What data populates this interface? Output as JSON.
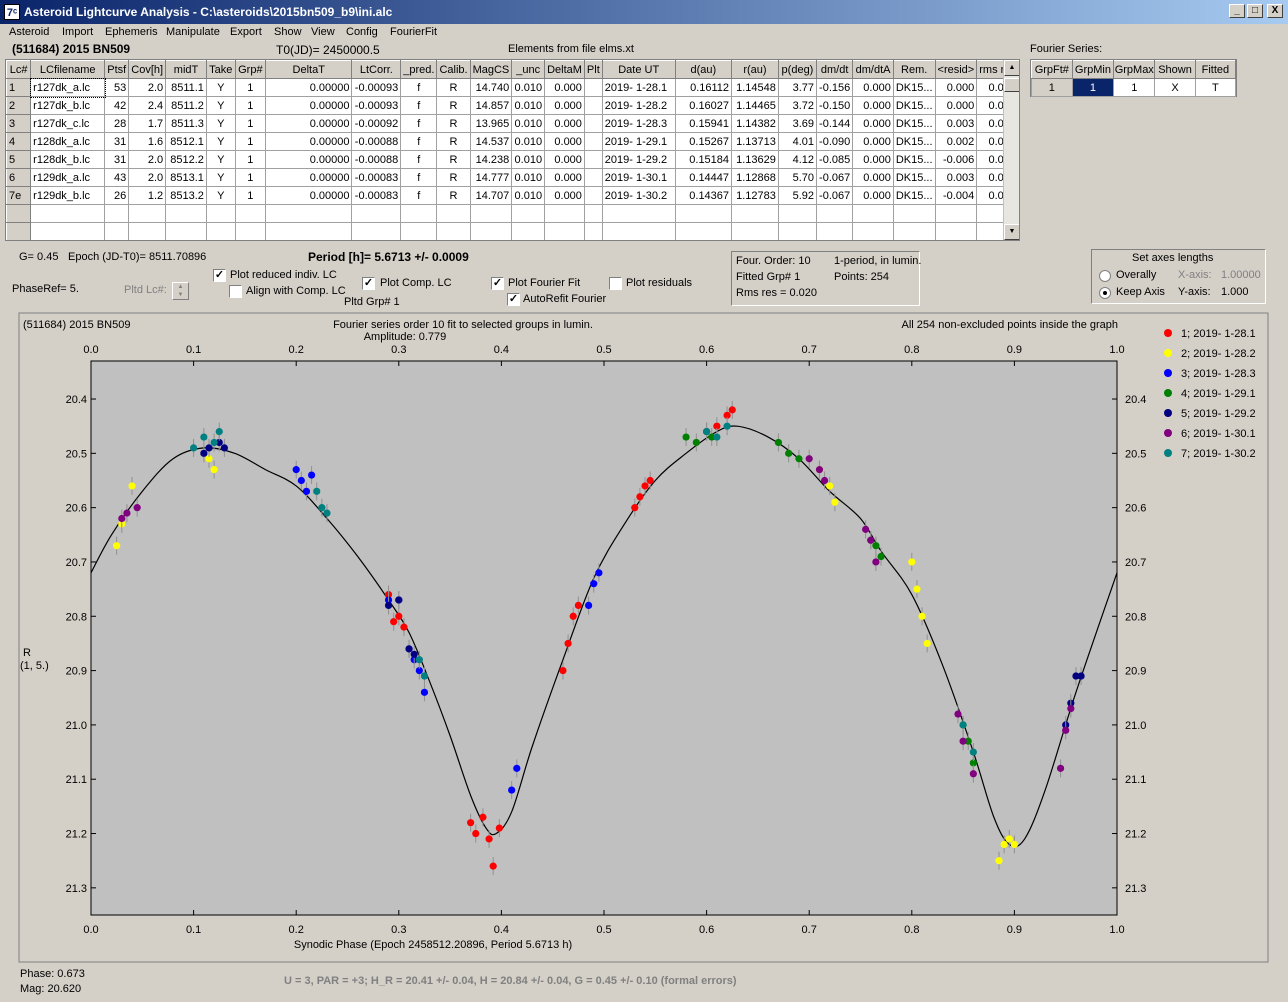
{
  "window": {
    "title": "Asteroid Lightcurve Analysis - C:\\asteroids\\2015bn509_b9\\ini.alc",
    "icon_glyph": "7ᶜ",
    "minimize": "_",
    "maximize": "□",
    "close": "X"
  },
  "menu": [
    "Asteroid",
    "Import",
    "Ephemeris",
    "Manipulate",
    "Export",
    "Show",
    "View",
    "Config",
    "FourierFit"
  ],
  "header": {
    "object": "(511684) 2015 BN509",
    "t0": "T0(JD)= 2450000.5",
    "elements": "Elements from file elms.xt",
    "fourier_label": "Fourier Series:"
  },
  "grid": {
    "columns": [
      "Lc#",
      "LCfilename",
      "Ptsf",
      "Cov[h]",
      "midT",
      "Take",
      "Grp#",
      "DeltaT",
      "LtCorr.",
      "_pred.",
      "Calib.",
      "MagCS",
      "_unc",
      "DeltaM",
      "Plt",
      "Date UT",
      "d(au)",
      "r(au)",
      "p(deg)",
      "dm/dt",
      "dm/dtA",
      "Rem.",
      "<resid>",
      "rms res"
    ],
    "rows": [
      [
        "1",
        "r127dk_a.lc",
        "53",
        "2.0",
        "8511.1",
        "Y",
        "1",
        "0.00000",
        "-0.00093",
        "f",
        "R",
        "14.740",
        "0.010",
        "0.000",
        "",
        "2019- 1-28.1",
        "0.16112",
        "1.14548",
        "3.77",
        "-0.156",
        "0.000",
        "DK15...",
        "0.000",
        "0.020"
      ],
      [
        "2",
        "r127dk_b.lc",
        "42",
        "2.4",
        "8511.2",
        "Y",
        "1",
        "0.00000",
        "-0.00093",
        "f",
        "R",
        "14.857",
        "0.010",
        "0.000",
        "",
        "2019- 1-28.2",
        "0.16027",
        "1.14465",
        "3.72",
        "-0.150",
        "0.000",
        "DK15...",
        "0.000",
        "0.025"
      ],
      [
        "3",
        "r127dk_c.lc",
        "28",
        "1.7",
        "8511.3",
        "Y",
        "1",
        "0.00000",
        "-0.00092",
        "f",
        "R",
        "13.965",
        "0.010",
        "0.000",
        "",
        "2019- 1-28.3",
        "0.15941",
        "1.14382",
        "3.69",
        "-0.144",
        "0.000",
        "DK15...",
        "0.003",
        "0.017"
      ],
      [
        "4",
        "r128dk_a.lc",
        "31",
        "1.6",
        "8512.1",
        "Y",
        "1",
        "0.00000",
        "-0.00088",
        "f",
        "R",
        "14.537",
        "0.010",
        "0.000",
        "",
        "2019- 1-29.1",
        "0.15267",
        "1.13713",
        "4.01",
        "-0.090",
        "0.000",
        "DK15...",
        "0.002",
        "0.018"
      ],
      [
        "5",
        "r128dk_b.lc",
        "31",
        "2.0",
        "8512.2",
        "Y",
        "1",
        "0.00000",
        "-0.00088",
        "f",
        "R",
        "14.238",
        "0.010",
        "0.000",
        "",
        "2019- 1-29.2",
        "0.15184",
        "1.13629",
        "4.12",
        "-0.085",
        "0.000",
        "DK15...",
        "-0.006",
        "0.013"
      ],
      [
        "6",
        "r129dk_a.lc",
        "43",
        "2.0",
        "8513.1",
        "Y",
        "1",
        "0.00000",
        "-0.00083",
        "f",
        "R",
        "14.777",
        "0.010",
        "0.000",
        "",
        "2019- 1-30.1",
        "0.14447",
        "1.12868",
        "5.70",
        "-0.067",
        "0.000",
        "DK15...",
        "0.003",
        "0.020"
      ],
      [
        "7e",
        "r129dk_b.lc",
        "26",
        "1.2",
        "8513.2",
        "Y",
        "1",
        "0.00000",
        "-0.00083",
        "f",
        "R",
        "14.707",
        "0.010",
        "0.000",
        "",
        "2019- 1-30.2",
        "0.14367",
        "1.12783",
        "5.92",
        "-0.067",
        "0.000",
        "DK15...",
        "-0.004",
        "0.019"
      ]
    ]
  },
  "fourier_grid": {
    "columns": [
      "GrpFt#",
      "GrpMin",
      "GrpMax",
      "Shown",
      "Fitted"
    ],
    "rows": [
      [
        "1",
        "1",
        "1",
        "X",
        "T"
      ]
    ]
  },
  "controls": {
    "g": "G= 0.45",
    "epoch": "Epoch (JD-T0)= 8511.70896",
    "period": "Period [h]= 5.6713 +/- 0.0009",
    "phaseref": "PhaseRef= 5.",
    "pltd_lc": "Pltd Lc#:",
    "plot_reduced": "Plot reduced indiv. LC",
    "align_comp": "Align with Comp. LC",
    "plot_comp": "Plot Comp. LC",
    "pltd_grp": "Pltd Grp#  1",
    "plot_fourier": "Plot Fourier Fit",
    "autorefit": "AutoRefit Fourier",
    "plot_residuals": "Plot residuals",
    "check": "✓",
    "spin_up": "▲",
    "spin_down": "▼",
    "info": {
      "order": "Four. Order: 10",
      "period_mode": "1-period, in lumin.",
      "fitted": "Fitted Grp# 1",
      "points": "Points: 254",
      "rms": "Rms res     = 0.020"
    },
    "axes": {
      "title": "Set axes lengths",
      "overally": "Overally",
      "keep_axis": "Keep Axis",
      "x_axis_label": "X-axis:",
      "x_axis_value": "1.00000",
      "y_axis_label": "Y-axis:",
      "y_axis_value": "1.000"
    }
  },
  "footer": {
    "phase": "Phase:  0.673",
    "mag": "Mag:    20.620",
    "result": "U = 3, PAR = +3; H_R = 20.41 +/- 0.04, H = 20.84 +/- 0.04, G = 0.45 +/- 0.10 (formal errors)"
  },
  "colors": {
    "plot_bg": "#c0c0c0",
    "curve": "#000000"
  },
  "chart_data": {
    "type": "scatter",
    "title": "(511684) 2015 BN509",
    "subtitle": "Fourier series order 10 fit to selected groups in lumin.",
    "amplitude": "Amplitude: 0.779",
    "note": "All 254 non-excluded points inside the graph",
    "xlabel": "Synodic Phase (Epoch 2458512.20896, Period 5.6713 h)",
    "ylabel": "R",
    "ylabel2": "(1, 5.)",
    "xlim": [
      0.0,
      1.0
    ],
    "ylim": [
      20.33,
      21.35
    ],
    "y_inverted": true,
    "x_ticks": [
      "0.0",
      "0.1",
      "0.2",
      "0.3",
      "0.4",
      "0.5",
      "0.6",
      "0.7",
      "0.8",
      "0.9",
      "1.0"
    ],
    "y_ticks": [
      "20.4",
      "20.5",
      "20.6",
      "20.7",
      "20.8",
      "20.9",
      "21.0",
      "21.1",
      "21.2",
      "21.3"
    ],
    "fit_curve": [
      [
        0.0,
        20.72
      ],
      [
        0.02,
        20.65
      ],
      [
        0.05,
        20.57
      ],
      [
        0.08,
        20.51
      ],
      [
        0.11,
        20.49
      ],
      [
        0.14,
        20.5
      ],
      [
        0.17,
        20.53
      ],
      [
        0.2,
        20.56
      ],
      [
        0.23,
        20.62
      ],
      [
        0.26,
        20.69
      ],
      [
        0.29,
        20.77
      ],
      [
        0.31,
        20.83
      ],
      [
        0.33,
        20.92
      ],
      [
        0.35,
        21.02
      ],
      [
        0.37,
        21.13
      ],
      [
        0.385,
        21.19
      ],
      [
        0.395,
        21.2
      ],
      [
        0.41,
        21.16
      ],
      [
        0.43,
        21.04
      ],
      [
        0.46,
        20.88
      ],
      [
        0.49,
        20.73
      ],
      [
        0.52,
        20.63
      ],
      [
        0.55,
        20.55
      ],
      [
        0.58,
        20.5
      ],
      [
        0.61,
        20.46
      ],
      [
        0.63,
        20.45
      ],
      [
        0.66,
        20.47
      ],
      [
        0.69,
        20.51
      ],
      [
        0.72,
        20.57
      ],
      [
        0.75,
        20.62
      ],
      [
        0.77,
        20.68
      ],
      [
        0.8,
        20.76
      ],
      [
        0.83,
        20.89
      ],
      [
        0.86,
        21.05
      ],
      [
        0.88,
        21.17
      ],
      [
        0.895,
        21.22
      ],
      [
        0.91,
        21.21
      ],
      [
        0.93,
        21.12
      ],
      [
        0.96,
        20.94
      ],
      [
        1.0,
        20.72
      ]
    ],
    "series": [
      {
        "name": "1; 2019- 1-28.1",
        "color": "#ff0000",
        "points": [
          [
            0.37,
            21.18
          ],
          [
            0.375,
            21.2
          ],
          [
            0.382,
            21.17
          ],
          [
            0.388,
            21.21
          ],
          [
            0.392,
            21.26
          ],
          [
            0.398,
            21.19
          ],
          [
            0.46,
            20.9
          ],
          [
            0.465,
            20.85
          ],
          [
            0.47,
            20.8
          ],
          [
            0.475,
            20.78
          ],
          [
            0.53,
            20.6
          ],
          [
            0.535,
            20.58
          ],
          [
            0.54,
            20.56
          ],
          [
            0.545,
            20.55
          ],
          [
            0.6,
            20.46
          ],
          [
            0.61,
            20.45
          ],
          [
            0.62,
            20.43
          ],
          [
            0.625,
            20.42
          ],
          [
            0.29,
            20.76
          ],
          [
            0.295,
            20.81
          ],
          [
            0.3,
            20.8
          ],
          [
            0.305,
            20.82
          ]
        ]
      },
      {
        "name": "2; 2019- 1-28.2",
        "color": "#ffff00",
        "points": [
          [
            0.025,
            20.67
          ],
          [
            0.03,
            20.63
          ],
          [
            0.04,
            20.56
          ],
          [
            0.115,
            20.51
          ],
          [
            0.12,
            20.53
          ],
          [
            0.71,
            20.53
          ],
          [
            0.72,
            20.56
          ],
          [
            0.725,
            20.59
          ],
          [
            0.8,
            20.7
          ],
          [
            0.805,
            20.75
          ],
          [
            0.81,
            20.8
          ],
          [
            0.815,
            20.85
          ],
          [
            0.885,
            21.25
          ],
          [
            0.89,
            21.22
          ],
          [
            0.895,
            21.21
          ],
          [
            0.9,
            21.22
          ]
        ]
      },
      {
        "name": "3; 2019- 1-28.3",
        "color": "#0000ff",
        "points": [
          [
            0.2,
            20.53
          ],
          [
            0.205,
            20.55
          ],
          [
            0.21,
            20.57
          ],
          [
            0.215,
            20.54
          ],
          [
            0.29,
            20.77
          ],
          [
            0.3,
            20.77
          ],
          [
            0.31,
            20.86
          ],
          [
            0.315,
            20.88
          ],
          [
            0.32,
            20.9
          ],
          [
            0.325,
            20.94
          ],
          [
            0.41,
            21.12
          ],
          [
            0.415,
            21.08
          ],
          [
            0.485,
            20.78
          ],
          [
            0.49,
            20.74
          ],
          [
            0.495,
            20.72
          ]
        ]
      },
      {
        "name": "4; 2019- 1-29.1",
        "color": "#008000",
        "points": [
          [
            0.58,
            20.47
          ],
          [
            0.59,
            20.48
          ],
          [
            0.6,
            20.46
          ],
          [
            0.605,
            20.47
          ],
          [
            0.67,
            20.48
          ],
          [
            0.68,
            20.5
          ],
          [
            0.69,
            20.51
          ],
          [
            0.76,
            20.66
          ],
          [
            0.765,
            20.67
          ],
          [
            0.77,
            20.69
          ],
          [
            0.85,
            21.0
          ],
          [
            0.855,
            21.03
          ],
          [
            0.86,
            21.07
          ]
        ]
      },
      {
        "name": "5; 2019- 1-29.2",
        "color": "#000080",
        "points": [
          [
            0.11,
            20.5
          ],
          [
            0.115,
            20.49
          ],
          [
            0.125,
            20.48
          ],
          [
            0.13,
            20.49
          ],
          [
            0.29,
            20.78
          ],
          [
            0.3,
            20.77
          ],
          [
            0.31,
            20.86
          ],
          [
            0.315,
            20.87
          ],
          [
            0.95,
            21.0
          ],
          [
            0.955,
            20.96
          ],
          [
            0.96,
            20.91
          ],
          [
            0.965,
            20.91
          ]
        ]
      },
      {
        "name": "6; 2019- 1-30.1",
        "color": "#800080",
        "points": [
          [
            0.03,
            20.62
          ],
          [
            0.035,
            20.61
          ],
          [
            0.045,
            20.6
          ],
          [
            0.7,
            20.51
          ],
          [
            0.71,
            20.53
          ],
          [
            0.715,
            20.55
          ],
          [
            0.755,
            20.64
          ],
          [
            0.76,
            20.66
          ],
          [
            0.765,
            20.7
          ],
          [
            0.845,
            20.98
          ],
          [
            0.85,
            21.03
          ],
          [
            0.86,
            21.09
          ],
          [
            0.945,
            21.08
          ],
          [
            0.95,
            21.01
          ],
          [
            0.955,
            20.97
          ]
        ]
      },
      {
        "name": "7; 2019- 1-30.2",
        "color": "#008080",
        "points": [
          [
            0.1,
            20.49
          ],
          [
            0.11,
            20.47
          ],
          [
            0.12,
            20.48
          ],
          [
            0.125,
            20.46
          ],
          [
            0.22,
            20.57
          ],
          [
            0.225,
            20.6
          ],
          [
            0.23,
            20.61
          ],
          [
            0.32,
            20.88
          ],
          [
            0.325,
            20.91
          ],
          [
            0.6,
            20.46
          ],
          [
            0.61,
            20.47
          ],
          [
            0.62,
            20.45
          ],
          [
            0.85,
            21.0
          ],
          [
            0.86,
            21.05
          ]
        ]
      }
    ]
  }
}
